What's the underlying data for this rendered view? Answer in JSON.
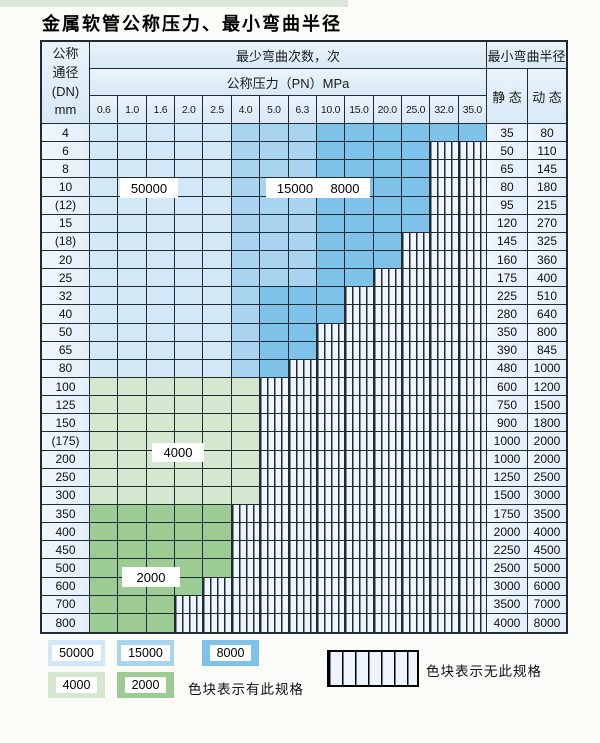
{
  "title": "金属软管公称压力、最小弯曲半径",
  "colors": {
    "pagebg": "#fbfcf8",
    "strip": "#dde8dd",
    "grid": "#202c33",
    "c50": "#d3e8f7",
    "c15": "#a9d4f0",
    "c8": "#7ec2ea",
    "c4": "#d6e7d0",
    "c2": "#9ccb94",
    "hatchbg": "#eef4fb"
  },
  "chart_data": {
    "type": "table",
    "title": "金属软管公称压力、最小弯曲半径",
    "header": {
      "dn_lines": [
        "公称",
        "通径",
        "(DN)",
        "mm"
      ],
      "min_cycles_title": "最少弯曲次数，次",
      "min_radius_title": "最小弯曲半径",
      "pressure_title": "公称压力（PN）MPa",
      "static_label": "静 态",
      "dynamic_label": "动 态",
      "pressures_mpa": [
        "0.6",
        "1.0",
        "1.6",
        "2.0",
        "2.5",
        "4.0",
        "5.0",
        "6.3",
        "10.0",
        "15.0",
        "20.0",
        "25.0",
        "32.0",
        "35.0"
      ]
    },
    "cycle_bands": {
      "b50": "50000",
      "b15": "15000",
      "b8": "8000",
      "b4": "4000",
      "b2": "2000",
      "bx": "无此规格"
    },
    "rows": [
      {
        "dn": "4",
        "spec": {
          "b50": 5,
          "b15": 3,
          "b8": 6
        },
        "static": "35",
        "dynamic": "80"
      },
      {
        "dn": "6",
        "spec": {
          "b50": 5,
          "b15": 3,
          "b8": 4
        },
        "static": "50",
        "dynamic": "110"
      },
      {
        "dn": "8",
        "spec": {
          "b50": 5,
          "b15": 3,
          "b8": 4
        },
        "static": "65",
        "dynamic": "145"
      },
      {
        "dn": "10",
        "spec": {
          "b50": 5,
          "b15": 3,
          "b8": 4
        },
        "static": "80",
        "dynamic": "180"
      },
      {
        "dn": "(12)",
        "spec": {
          "b50": 5,
          "b15": 3,
          "b8": 4
        },
        "static": "95",
        "dynamic": "215"
      },
      {
        "dn": "15",
        "spec": {
          "b50": 5,
          "b15": 3,
          "b8": 4
        },
        "static": "120",
        "dynamic": "270"
      },
      {
        "dn": "(18)",
        "spec": {
          "b50": 5,
          "b15": 3,
          "b8": 3
        },
        "static": "145",
        "dynamic": "325"
      },
      {
        "dn": "20",
        "spec": {
          "b50": 5,
          "b15": 3,
          "b8": 3
        },
        "static": "160",
        "dynamic": "360"
      },
      {
        "dn": "25",
        "spec": {
          "b50": 5,
          "b15": 3,
          "b8": 2
        },
        "static": "175",
        "dynamic": "400"
      },
      {
        "dn": "32",
        "spec": {
          "b50": 5,
          "b15": 1,
          "b8": 3
        },
        "static": "225",
        "dynamic": "510"
      },
      {
        "dn": "40",
        "spec": {
          "b50": 5,
          "b15": 1,
          "b8": 3
        },
        "static": "280",
        "dynamic": "640"
      },
      {
        "dn": "50",
        "spec": {
          "b50": 5,
          "b15": 1,
          "b8": 2
        },
        "static": "350",
        "dynamic": "800"
      },
      {
        "dn": "65",
        "spec": {
          "b50": 5,
          "b15": 1,
          "b8": 2
        },
        "static": "390",
        "dynamic": "845"
      },
      {
        "dn": "80",
        "spec": {
          "b50": 5,
          "b15": 1,
          "b8": 1
        },
        "static": "480",
        "dynamic": "1000"
      },
      {
        "dn": "100",
        "spec": {
          "b4": 6
        },
        "static": "600",
        "dynamic": "1200"
      },
      {
        "dn": "125",
        "spec": {
          "b4": 6
        },
        "static": "750",
        "dynamic": "1500"
      },
      {
        "dn": "150",
        "spec": {
          "b4": 6
        },
        "static": "900",
        "dynamic": "1800"
      },
      {
        "dn": "(175)",
        "spec": {
          "b4": 6
        },
        "static": "1000",
        "dynamic": "2000"
      },
      {
        "dn": "200",
        "spec": {
          "b4": 6
        },
        "static": "1000",
        "dynamic": "2000"
      },
      {
        "dn": "250",
        "spec": {
          "b4": 6
        },
        "static": "1250",
        "dynamic": "2500"
      },
      {
        "dn": "300",
        "spec": {
          "b4": 6
        },
        "static": "1500",
        "dynamic": "3000"
      },
      {
        "dn": "350",
        "spec": {
          "b2": 5
        },
        "static": "1750",
        "dynamic": "3500"
      },
      {
        "dn": "400",
        "spec": {
          "b2": 5
        },
        "static": "2000",
        "dynamic": "4000"
      },
      {
        "dn": "450",
        "spec": {
          "b2": 5
        },
        "static": "2250",
        "dynamic": "4500"
      },
      {
        "dn": "500",
        "spec": {
          "b2": 5
        },
        "static": "2500",
        "dynamic": "5000"
      },
      {
        "dn": "600",
        "spec": {
          "b2": 4
        },
        "static": "3000",
        "dynamic": "6000"
      },
      {
        "dn": "700",
        "spec": {
          "b2": 3
        },
        "static": "3500",
        "dynamic": "7000"
      },
      {
        "dn": "800",
        "spec": {
          "b2": 3
        },
        "static": "4000",
        "dynamic": "8000"
      }
    ]
  },
  "in_table_labels": {
    "l50000": "50000",
    "l15000": "15000",
    "l8000": "8000",
    "l4000": "4000",
    "l2000": "2000"
  },
  "legend": {
    "items": [
      {
        "label": "50000"
      },
      {
        "label": "15000"
      },
      {
        "label": "8000"
      },
      {
        "label": "4000"
      },
      {
        "label": "2000"
      }
    ],
    "has_spec_text": "色块表示有此规格",
    "no_spec_text": "色块表示无此规格"
  }
}
